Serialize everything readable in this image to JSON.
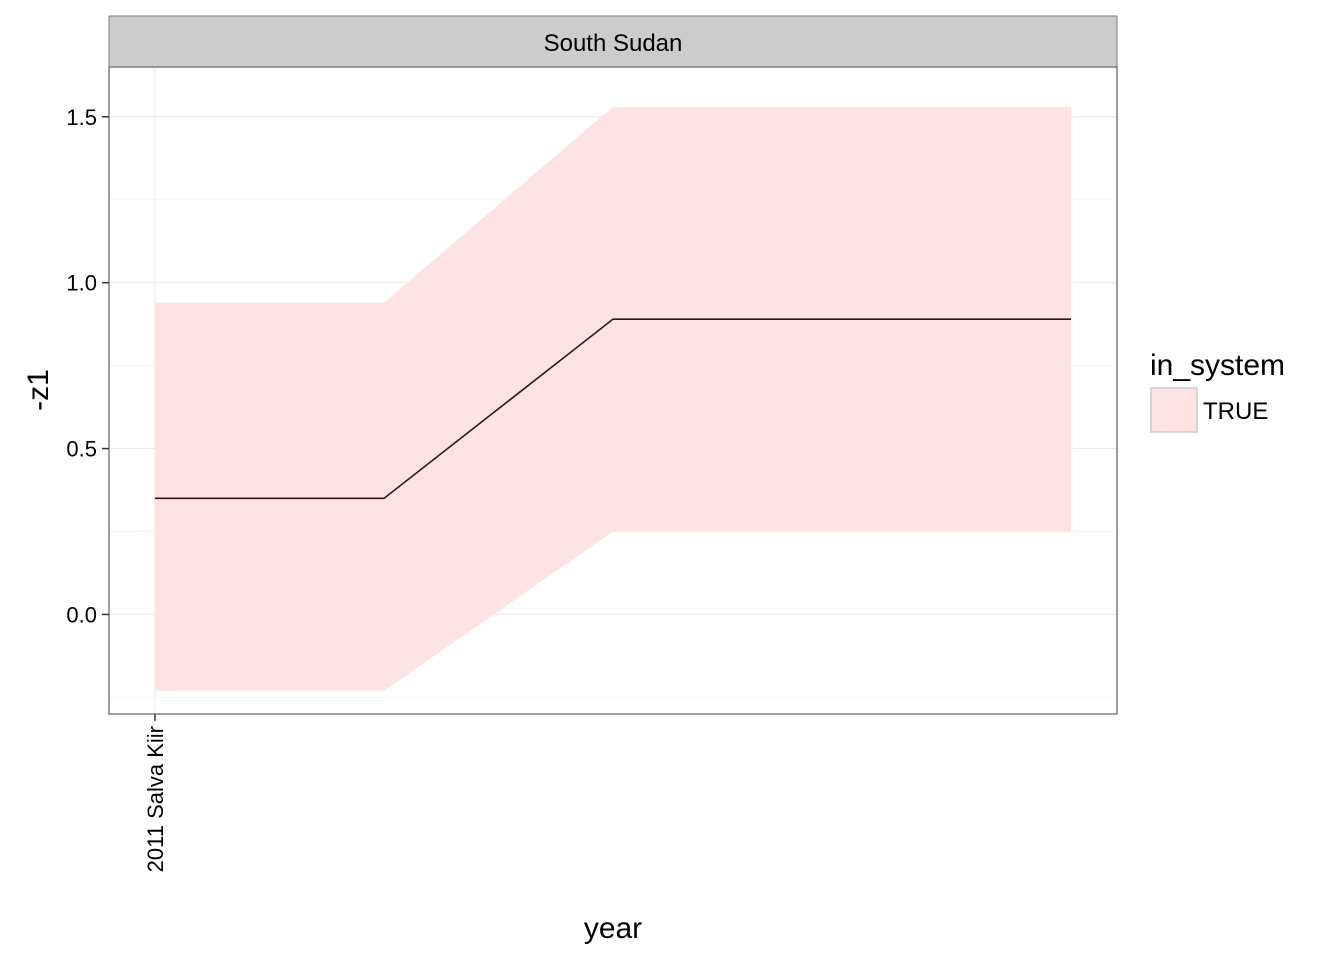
{
  "chart_data": {
    "type": "area",
    "facet_label": "South Sudan",
    "xlabel": "year",
    "ylabel": "-z1",
    "ylim": [
      -0.3,
      1.65
    ],
    "x_tick_labels": [
      "2011 Salva Kiir"
    ],
    "y_ticks": [
      0.0,
      0.5,
      1.0,
      1.5
    ],
    "y_tick_labels": [
      "0.0",
      "0.5",
      "1.0",
      "1.5"
    ],
    "grid": true,
    "x": [
      0,
      1,
      2,
      3,
      4
    ],
    "series": [
      {
        "group": "TRUE",
        "y": [
          0.35,
          0.35,
          0.89,
          0.89,
          0.89
        ],
        "ymin": [
          -0.23,
          -0.23,
          0.25,
          0.25,
          0.25
        ],
        "ymax": [
          0.94,
          0.94,
          1.53,
          1.53,
          1.53
        ],
        "line_color": "#3a0f1a",
        "fill_color": "#fde3e3"
      }
    ],
    "legend": {
      "title": "in_system",
      "placement": "right",
      "entries": [
        {
          "label": "TRUE",
          "color": "#fde3e3"
        }
      ]
    },
    "colors": {
      "strip_bg": "#cccccc",
      "panel_border": "#7f7f7f",
      "grid_major": "#ebebeb",
      "grid_minor": "#f5f5f5"
    }
  }
}
